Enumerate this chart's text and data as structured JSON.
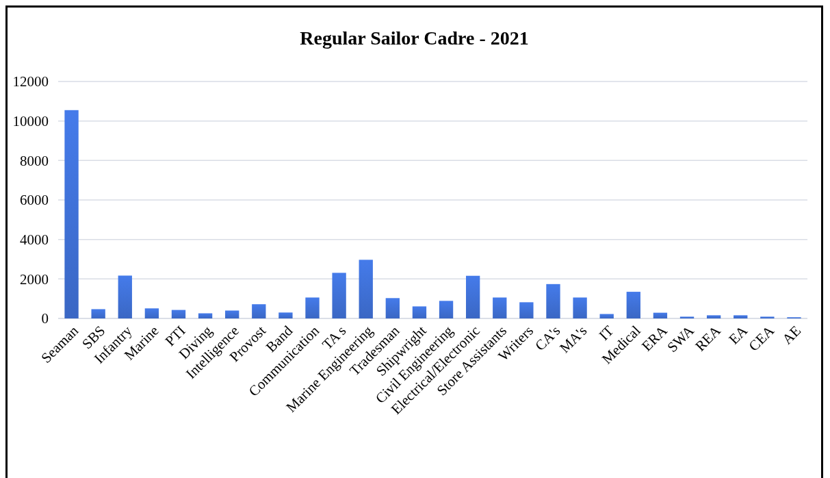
{
  "chart_data": {
    "type": "bar",
    "title": "Regular Sailor Cadre - 2021",
    "categories": [
      "Seaman",
      "SBS",
      "Infantry",
      "Marine",
      "PTI",
      "Diving",
      "Intelligence",
      "Provost",
      "Band",
      "Communication",
      "TA s",
      "Marine Engineering",
      "Tradesman",
      "Shipwright",
      "Civil Engineering",
      "Electrical/Electronic",
      "Store Assistants",
      "Writers",
      "CA's",
      "MA's",
      "IT",
      "Medical",
      "ERA",
      "SWA",
      "REA",
      "EA",
      "CEA",
      "AE"
    ],
    "values": [
      10550,
      470,
      2170,
      510,
      430,
      260,
      400,
      720,
      300,
      1060,
      2310,
      2970,
      1030,
      610,
      890,
      2160,
      1060,
      820,
      1740,
      1060,
      225,
      1350,
      290,
      90,
      160,
      160,
      90,
      60
    ],
    "color": "#3a67c4",
    "ylim": [
      0,
      12000
    ],
    "yticks": [
      0,
      2000,
      4000,
      6000,
      8000,
      10000,
      12000
    ],
    "grid": "y"
  }
}
